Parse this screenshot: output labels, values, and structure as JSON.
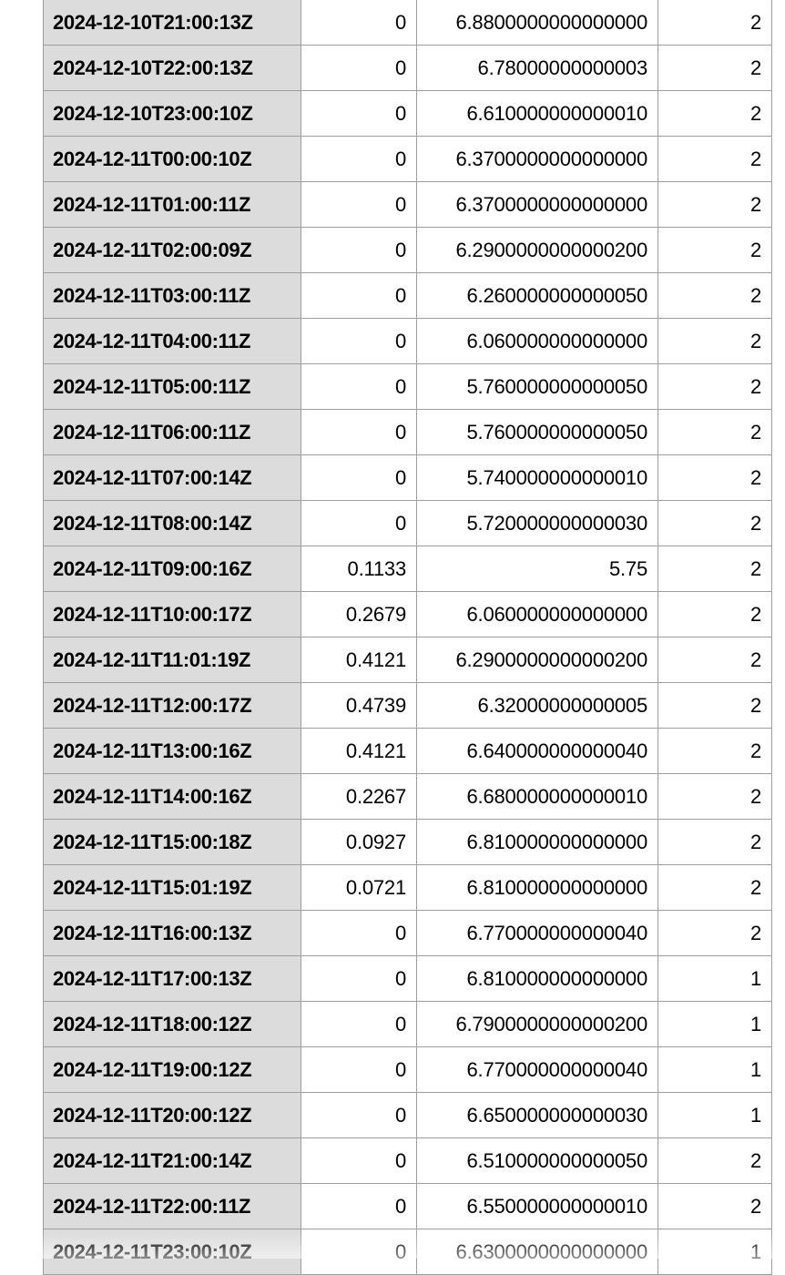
{
  "table": {
    "rows": [
      [
        "2024-12-10T21:00:13Z",
        "0",
        "6.8800000000000000",
        "2"
      ],
      [
        "2024-12-10T22:00:13Z",
        "0",
        "6.78000000000003",
        "2"
      ],
      [
        "2024-12-10T23:00:10Z",
        "0",
        "6.610000000000010",
        "2"
      ],
      [
        "2024-12-11T00:00:10Z",
        "0",
        "6.3700000000000000",
        "2"
      ],
      [
        "2024-12-11T01:00:11Z",
        "0",
        "6.3700000000000000",
        "2"
      ],
      [
        "2024-12-11T02:00:09Z",
        "0",
        "6.2900000000000200",
        "2"
      ],
      [
        "2024-12-11T03:00:11Z",
        "0",
        "6.260000000000050",
        "2"
      ],
      [
        "2024-12-11T04:00:11Z",
        "0",
        "6.060000000000000",
        "2"
      ],
      [
        "2024-12-11T05:00:11Z",
        "0",
        "5.760000000000050",
        "2"
      ],
      [
        "2024-12-11T06:00:11Z",
        "0",
        "5.760000000000050",
        "2"
      ],
      [
        "2024-12-11T07:00:14Z",
        "0",
        "5.740000000000010",
        "2"
      ],
      [
        "2024-12-11T08:00:14Z",
        "0",
        "5.720000000000030",
        "2"
      ],
      [
        "2024-12-11T09:00:16Z",
        "0.1133",
        "5.75",
        "2"
      ],
      [
        "2024-12-11T10:00:17Z",
        "0.2679",
        "6.060000000000000",
        "2"
      ],
      [
        "2024-12-11T11:01:19Z",
        "0.4121",
        "6.2900000000000200",
        "2"
      ],
      [
        "2024-12-11T12:00:17Z",
        "0.4739",
        "6.32000000000005",
        "2"
      ],
      [
        "2024-12-11T13:00:16Z",
        "0.4121",
        "6.640000000000040",
        "2"
      ],
      [
        "2024-12-11T14:00:16Z",
        "0.2267",
        "6.680000000000010",
        "2"
      ],
      [
        "2024-12-11T15:00:18Z",
        "0.0927",
        "6.810000000000000",
        "2"
      ],
      [
        "2024-12-11T15:01:19Z",
        "0.0721",
        "6.810000000000000",
        "2"
      ],
      [
        "2024-12-11T16:00:13Z",
        "0",
        "6.770000000000040",
        "2"
      ],
      [
        "2024-12-11T17:00:13Z",
        "0",
        "6.810000000000000",
        "1"
      ],
      [
        "2024-12-11T18:00:12Z",
        "0",
        "6.7900000000000200",
        "1"
      ],
      [
        "2024-12-11T19:00:12Z",
        "0",
        "6.770000000000040",
        "1"
      ],
      [
        "2024-12-11T20:00:12Z",
        "0",
        "6.650000000000030",
        "1"
      ],
      [
        "2024-12-11T21:00:14Z",
        "0",
        "6.510000000000050",
        "2"
      ],
      [
        "2024-12-11T22:00:11Z",
        "0",
        "6.550000000000010",
        "2"
      ],
      [
        "2024-12-11T23:00:10Z",
        "0",
        "6.6300000000000000",
        "1"
      ]
    ]
  }
}
